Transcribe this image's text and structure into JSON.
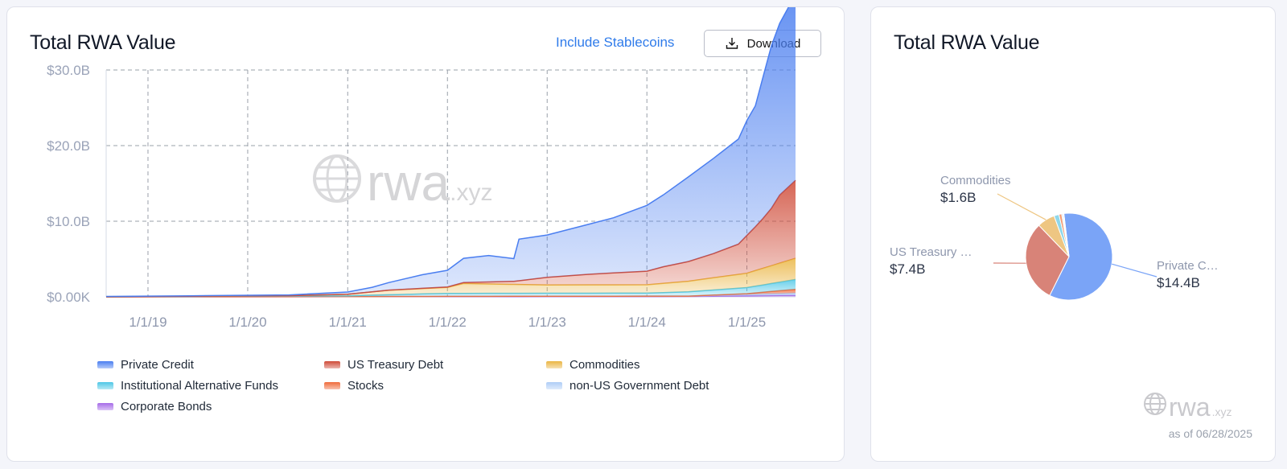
{
  "left_card": {
    "title": "Total RWA Value",
    "include_stablecoins_label": "Include Stablecoins",
    "download_label": "Download",
    "watermark": "rwa.xyz"
  },
  "right_card": {
    "title": "Total RWA Value",
    "watermark_main": "rwa",
    "watermark_suffix": ".xyz",
    "as_of": "as of 06/28/2025"
  },
  "colors": {
    "private_credit": "#4a7ef0",
    "us_treasury": "#cf4a37",
    "commodities": "#eab542",
    "institutional_funds": "#4ec7e6",
    "stocks": "#ef6a3a",
    "non_us_gov": "#aecdf6",
    "corporate_bonds": "#a66be8"
  },
  "chart_data": [
    {
      "type": "area",
      "title": "Total RWA Value",
      "x_tick_labels": [
        "1/1/19",
        "1/1/20",
        "1/1/21",
        "1/1/22",
        "1/1/23",
        "1/1/24",
        "1/1/25"
      ],
      "y_tick_labels": [
        "$0.00K",
        "$10.0B",
        "$20.0B",
        "$30.0B"
      ],
      "ylim": [
        0,
        30
      ],
      "y_unit": "$B",
      "xlim": [
        "2018-08-01",
        "2025-06-28"
      ],
      "grid": true,
      "stacked": true,
      "legend_position": "bottom",
      "series": [
        {
          "name": "Private Credit",
          "color": "#4a7ef0",
          "points": [
            [
              "2018-08-01",
              0.05
            ],
            [
              "2019-06-01",
              0.07
            ],
            [
              "2020-06-01",
              0.1
            ],
            [
              "2021-01-01",
              0.3
            ],
            [
              "2021-04-01",
              0.6
            ],
            [
              "2021-07-01",
              1.2
            ],
            [
              "2021-10-01",
              1.8
            ],
            [
              "2022-01-01",
              2.2
            ],
            [
              "2022-03-01",
              3.2
            ],
            [
              "2022-06-01",
              3.5
            ],
            [
              "2022-09-01",
              3.0
            ],
            [
              "2022-09-20",
              5.5
            ],
            [
              "2023-01-01",
              5.6
            ],
            [
              "2023-06-01",
              6.6
            ],
            [
              "2023-09-01",
              7.3
            ],
            [
              "2024-01-01",
              8.7
            ],
            [
              "2024-03-01",
              9.5
            ],
            [
              "2024-06-01",
              11.2
            ],
            [
              "2024-09-01",
              12.6
            ],
            [
              "2024-12-01",
              13.9
            ],
            [
              "2025-01-01",
              15.2
            ],
            [
              "2025-02-01",
              16.0
            ],
            [
              "2025-03-01",
              18.7
            ],
            [
              "2025-04-01",
              21.5
            ],
            [
              "2025-05-01",
              22.7
            ],
            [
              "2025-06-28",
              24.6
            ]
          ]
        },
        {
          "name": "US Treasury Debt",
          "color": "#cf4a37",
          "points": [
            [
              "2018-08-01",
              0.0
            ],
            [
              "2021-01-01",
              0.0
            ],
            [
              "2022-01-01",
              0.05
            ],
            [
              "2022-09-01",
              0.4
            ],
            [
              "2023-01-01",
              1.0
            ],
            [
              "2023-06-01",
              1.4
            ],
            [
              "2024-01-01",
              1.8
            ],
            [
              "2024-03-01",
              2.2
            ],
            [
              "2024-06-01",
              2.6
            ],
            [
              "2024-09-01",
              3.2
            ],
            [
              "2024-12-01",
              4.0
            ],
            [
              "2025-01-01",
              5.0
            ],
            [
              "2025-02-01",
              5.8
            ],
            [
              "2025-03-01",
              6.6
            ],
            [
              "2025-04-01",
              7.6
            ],
            [
              "2025-05-01",
              9.0
            ],
            [
              "2025-06-28",
              10.3
            ]
          ]
        },
        {
          "name": "Commodities",
          "color": "#eab542",
          "points": [
            [
              "2018-08-01",
              0.0
            ],
            [
              "2020-06-01",
              0.05
            ],
            [
              "2021-01-01",
              0.2
            ],
            [
              "2021-06-01",
              0.6
            ],
            [
              "2022-01-01",
              0.8
            ],
            [
              "2022-03-01",
              1.3
            ],
            [
              "2023-01-01",
              1.1
            ],
            [
              "2024-01-01",
              1.1
            ],
            [
              "2024-06-01",
              1.4
            ],
            [
              "2025-01-01",
              1.9
            ],
            [
              "2025-06-28",
              2.8
            ]
          ]
        },
        {
          "name": "Institutional Alternative Funds",
          "color": "#4ec7e6",
          "points": [
            [
              "2018-08-01",
              0.0
            ],
            [
              "2021-01-01",
              0.1
            ],
            [
              "2022-01-01",
              0.4
            ],
            [
              "2023-01-01",
              0.4
            ],
            [
              "2024-01-01",
              0.4
            ],
            [
              "2025-01-01",
              0.8
            ],
            [
              "2025-06-28",
              1.3
            ]
          ]
        },
        {
          "name": "Stocks",
          "color": "#ef6a3a",
          "points": [
            [
              "2018-08-01",
              0.0
            ],
            [
              "2024-06-01",
              0.0
            ],
            [
              "2025-01-01",
              0.1
            ],
            [
              "2025-06-28",
              0.5
            ]
          ]
        },
        {
          "name": "non-US Government Debt",
          "color": "#aecdf6",
          "points": [
            [
              "2018-08-01",
              0.0
            ],
            [
              "2024-06-01",
              0.05
            ],
            [
              "2025-06-28",
              0.3
            ]
          ]
        },
        {
          "name": "Corporate Bonds",
          "color": "#a66be8",
          "points": [
            [
              "2018-08-01",
              0.0
            ],
            [
              "2024-06-01",
              0.05
            ],
            [
              "2025-06-28",
              0.2
            ]
          ]
        }
      ]
    },
    {
      "type": "pie",
      "title": "Total RWA Value",
      "slices": [
        {
          "name": "Private Credit",
          "label": "Private C…",
          "value_label": "$14.4B",
          "value": 14.4,
          "color": "#7aa4f7"
        },
        {
          "name": "US Treasury Debt",
          "label": "US Treasury …",
          "value_label": "$7.4B",
          "value": 7.4,
          "color": "#d88378"
        },
        {
          "name": "Commodities",
          "label": "Commodities",
          "value_label": "$1.6B",
          "value": 1.6,
          "color": "#eec682"
        },
        {
          "name": "Institutional Alternative Funds",
          "value": 0.45,
          "color": "#8fd7ea"
        },
        {
          "name": "Stocks",
          "value": 0.25,
          "color": "#f29b74"
        },
        {
          "name": "non-US Government Debt",
          "value": 0.12,
          "color": "#c6daf6"
        },
        {
          "name": "Corporate Bonds",
          "value": 0.08,
          "color": "#c8a6f0"
        }
      ]
    }
  ]
}
